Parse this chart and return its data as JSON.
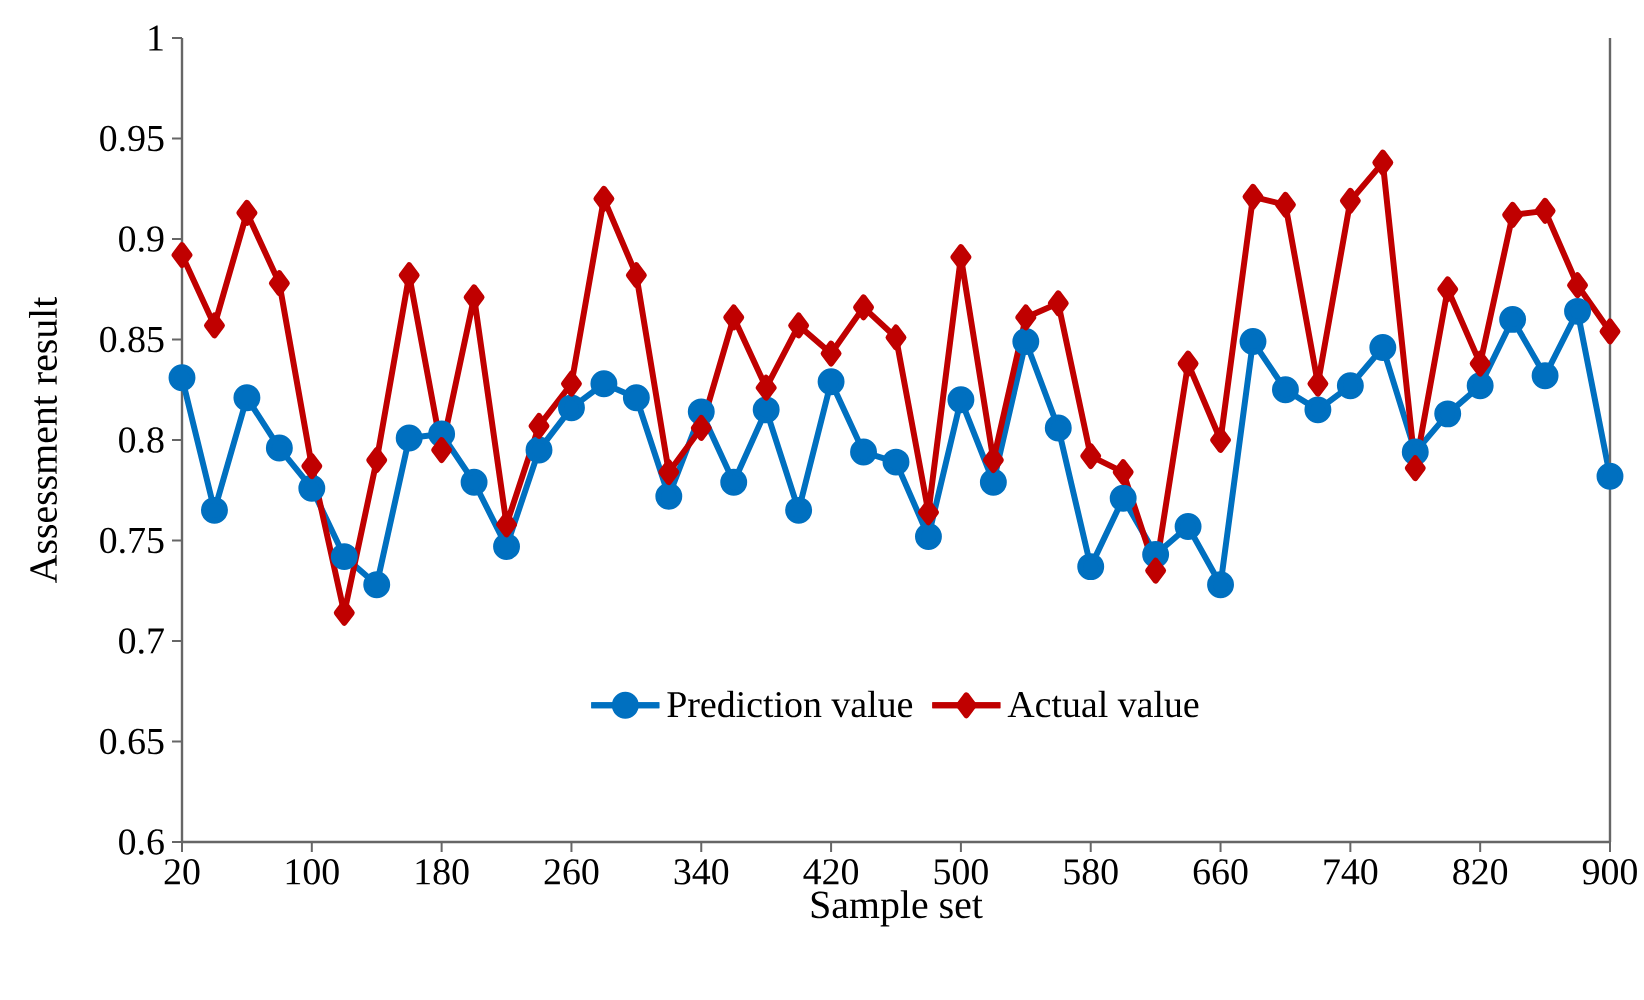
{
  "chart_data": {
    "type": "line",
    "xlabel": "Sample set",
    "ylabel": "Assessment result",
    "x": [
      20,
      40,
      60,
      80,
      100,
      120,
      140,
      160,
      180,
      200,
      220,
      240,
      260,
      280,
      300,
      320,
      340,
      360,
      380,
      400,
      420,
      440,
      460,
      480,
      500,
      520,
      540,
      560,
      580,
      600,
      620,
      640,
      660,
      680,
      700,
      720,
      740,
      760,
      780,
      800,
      820,
      840,
      860,
      880,
      900
    ],
    "series": [
      {
        "name": "Prediction value",
        "color": "#0070c0",
        "marker": "circle",
        "values": [
          0.831,
          0.765,
          0.821,
          0.796,
          0.776,
          0.742,
          0.728,
          0.801,
          0.803,
          0.779,
          0.747,
          0.795,
          0.816,
          0.828,
          0.821,
          0.772,
          0.814,
          0.779,
          0.815,
          0.765,
          0.829,
          0.794,
          0.789,
          0.752,
          0.82,
          0.779,
          0.849,
          0.806,
          0.737,
          0.771,
          0.743,
          0.757,
          0.728,
          0.849,
          0.825,
          0.815,
          0.827,
          0.846,
          0.794,
          0.813,
          0.827,
          0.86,
          0.832,
          0.864,
          0.782
        ]
      },
      {
        "name": "Actual value",
        "color": "#c00000",
        "marker": "diamond",
        "values": [
          0.892,
          0.857,
          0.913,
          0.878,
          0.787,
          0.714,
          0.79,
          0.882,
          0.795,
          0.871,
          0.758,
          0.807,
          0.828,
          0.92,
          0.882,
          0.784,
          0.806,
          0.861,
          0.826,
          0.857,
          0.843,
          0.866,
          0.851,
          0.764,
          0.891,
          0.79,
          0.861,
          0.868,
          0.792,
          0.784,
          0.735,
          0.838,
          0.8,
          0.921,
          0.917,
          0.828,
          0.919,
          0.938,
          0.786,
          0.875,
          0.838,
          0.912,
          0.914,
          0.877,
          0.854
        ]
      }
    ],
    "xlim": [
      20,
      900
    ],
    "xticks": [
      20,
      100,
      180,
      260,
      340,
      420,
      500,
      580,
      660,
      740,
      820,
      900
    ],
    "ylim": [
      0.6,
      1
    ],
    "yticks": [
      0.6,
      0.65,
      0.7,
      0.75,
      0.8,
      0.85,
      0.9,
      0.95,
      1
    ],
    "grid": false,
    "legend": "bottom",
    "line_style": "solid"
  }
}
